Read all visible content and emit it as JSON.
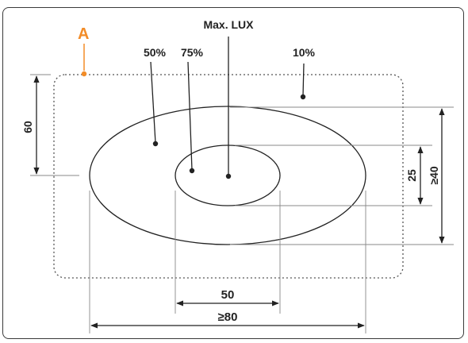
{
  "diagram": {
    "area_label": "A",
    "accent_color": "#f28c28",
    "line_color": "#222222",
    "zones": {
      "center": "Max. LUX",
      "p75": "75%",
      "p50": "50%",
      "p10": "10%"
    },
    "dimensions": {
      "height_area": "60",
      "outer_height": "≥40",
      "inner_height": "25",
      "inner_width": "50",
      "outer_width": "≥80"
    }
  }
}
